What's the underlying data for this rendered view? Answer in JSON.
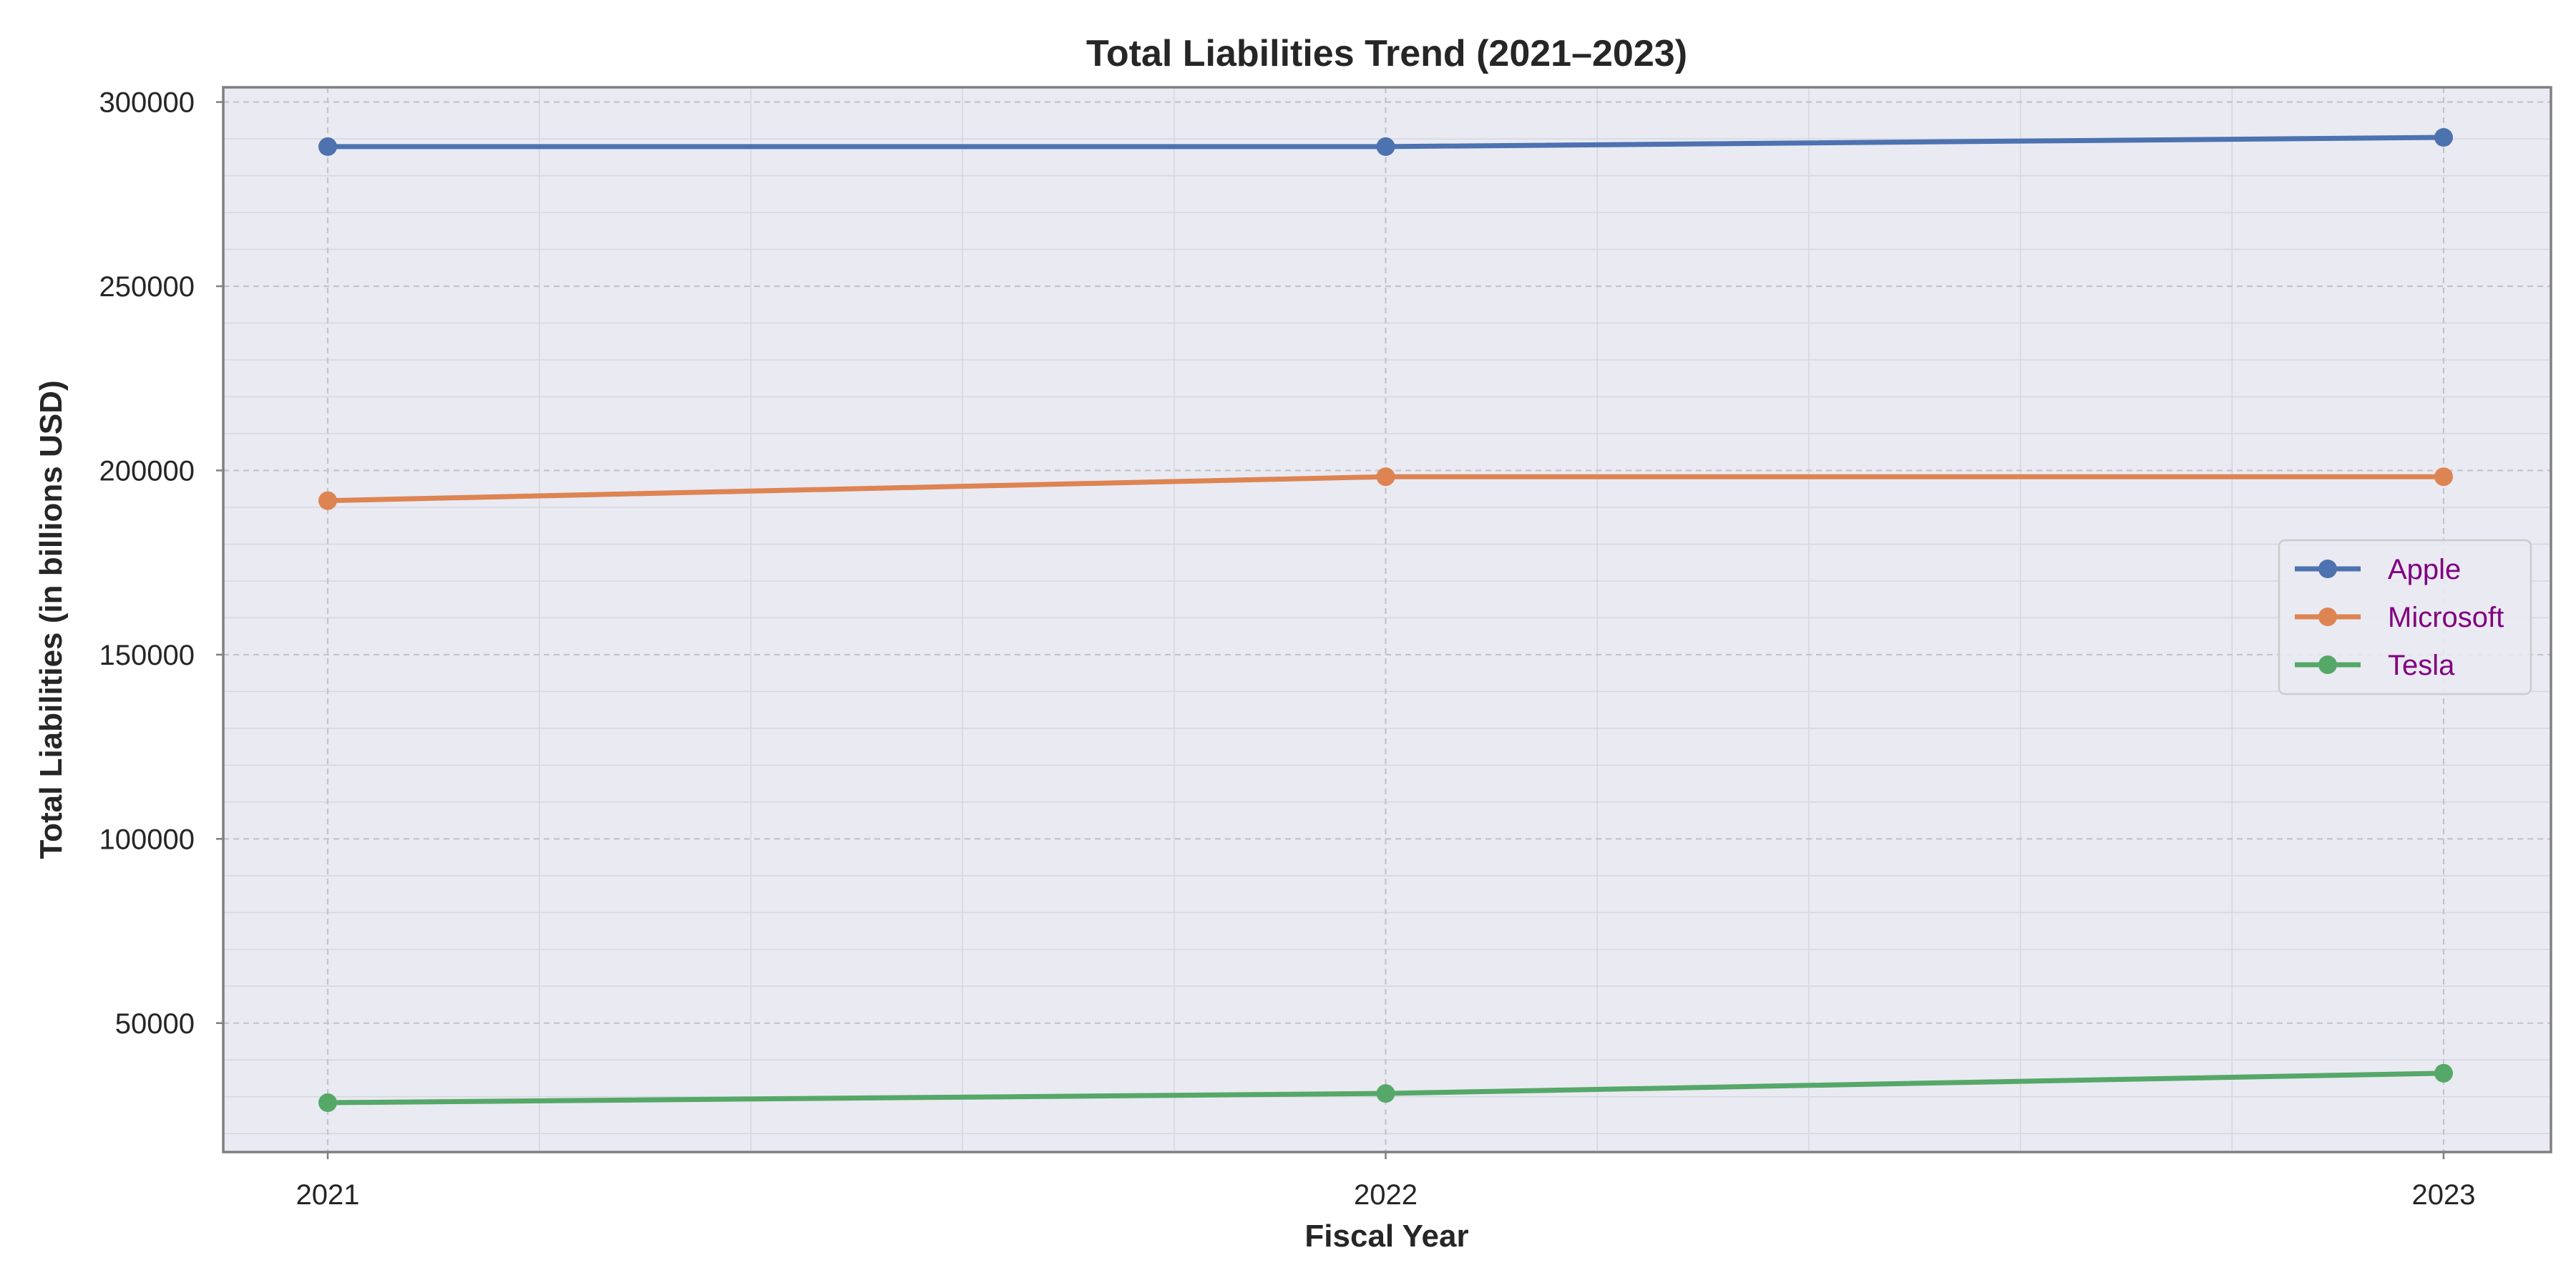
{
  "chart_data": {
    "type": "line",
    "title": "Total Liabilities Trend (2021–2023)",
    "xlabel": "Fiscal Year",
    "ylabel": "Total Liabilities (in billions USD)",
    "x": [
      "2021",
      "2022",
      "2023"
    ],
    "y_ticks": [
      "50000",
      "100000",
      "150000",
      "200000",
      "250000",
      "300000"
    ],
    "ylim": [
      15000,
      304000
    ],
    "grid": true,
    "legend_position": "center-right",
    "series": [
      {
        "name": "Apple",
        "values": [
          287900,
          287900,
          290400
        ],
        "color": "#4c72b0"
      },
      {
        "name": "Microsoft",
        "values": [
          191800,
          198300,
          198300
        ],
        "color": "#dd8452"
      },
      {
        "name": "Tesla",
        "values": [
          28400,
          30900,
          36400
        ],
        "color": "#55a868"
      }
    ],
    "colors": {
      "plot_background": "#eaeaf2",
      "frame": "#808080",
      "legend_text": "#800080",
      "text": "#262626"
    }
  }
}
